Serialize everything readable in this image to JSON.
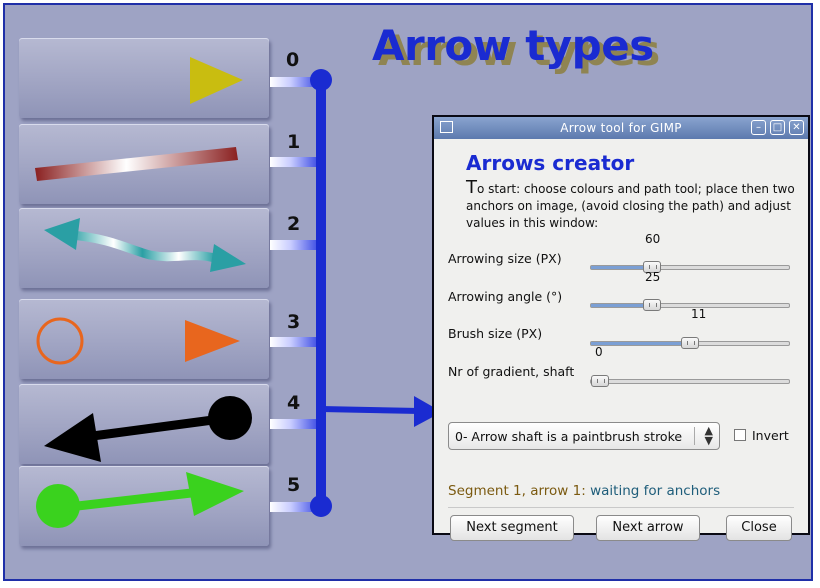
{
  "title": "Arrow types",
  "arrow_numbers": [
    "0",
    "1",
    "2",
    "3",
    "4",
    "5"
  ],
  "dialog": {
    "window_title": "Arrow tool for GIMP",
    "window_buttons": {
      "minimize": "–",
      "maximize": "□",
      "close": "✕"
    },
    "heading": "Arrows creator",
    "intro_first_letter": "T",
    "intro_rest": "o start: choose colours and path tool; place then two anchors on image, (avoid closing the path) and adjust values in this window:",
    "sliders": [
      {
        "label": "Arrowing size (PX)",
        "value": "60",
        "fraction": 0.29
      },
      {
        "label": "Arrowing angle (°)",
        "value": "25",
        "fraction": 0.29
      },
      {
        "label": "Brush size (PX)",
        "value": "11",
        "fraction": 0.5
      },
      {
        "label": "Nr of gradient, shaft",
        "value": "0",
        "fraction": 0.0
      }
    ],
    "shaft_mode": "0- Arrow shaft is a paintbrush stroke",
    "invert_label": "Invert",
    "status_prefix": "Segment 1, arrow 1:",
    "status_text": "waiting for anchors",
    "buttons": {
      "next_segment": "Next segment",
      "next_arrow": "Next arrow",
      "close": "Close"
    }
  },
  "colors": {
    "accent": "#1a2bd1",
    "background": "#9ea3c4"
  }
}
